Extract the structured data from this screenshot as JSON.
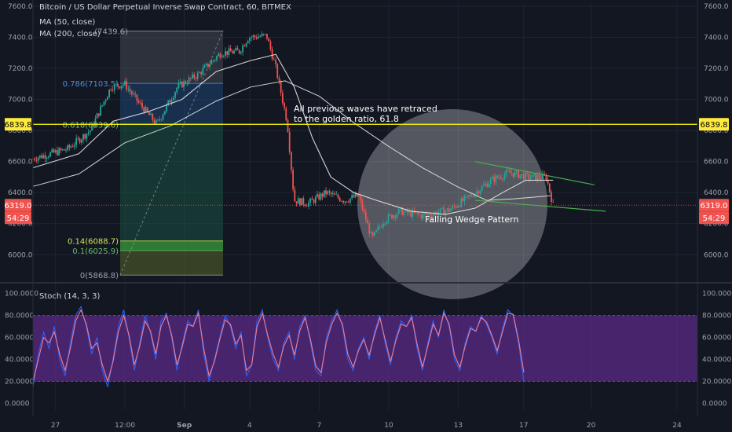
{
  "header": {
    "title": "Bitcoin / US Dollar Perpetual Inverse Swap Contract, 60, BITMEX",
    "ma50": "MA (50, close)",
    "ma200": "MA (200, close)",
    "stoch": "Stoch (14, 3, 3)"
  },
  "price_badges": {
    "golden_level": "6839.8",
    "last_price": "6319.0",
    "countdown": "54:29"
  },
  "annotations": {
    "retrace_note_line1": "All previous waves have retraced",
    "retrace_note_line2": "to the golden ratio, 61.8",
    "pattern_label": "Falling Wedge Pattern"
  },
  "colors": {
    "background": "#131722",
    "grid": "#1f2431",
    "up_candle": "#26a69a",
    "down_candle": "#ef5350",
    "golden_line": "#ffff00",
    "wedge_line": "#4caf50",
    "ma_line": "#e8e8e8",
    "stoch_band": "#5b2a86",
    "stoch_k": "#2962ff",
    "stoch_d": "#ef7c8e",
    "badge_yellow": "#ffeb3b",
    "badge_red": "#ef5350"
  },
  "chart_data": [
    {
      "type": "candlestick",
      "title": "Bitcoin / US Dollar Perpetual Inverse Swap Contract, 60, BITMEX",
      "x_tick_labels": [
        "27",
        "12:00",
        "Sep",
        "4",
        "7",
        "10",
        "13",
        "17",
        "20",
        "24"
      ],
      "y_tick_labels": [
        "6000.0",
        "6200.0",
        "6400.0",
        "6600.0",
        "6800.0",
        "7000.0",
        "7200.0",
        "7400.0",
        "7600.0"
      ],
      "ylim": [
        5880,
        7620
      ],
      "price_path": [
        {
          "t": 0.0,
          "p": 6620
        },
        {
          "t": 1.5,
          "p": 6680
        },
        {
          "t": 2.5,
          "p": 6800
        },
        {
          "t": 3.4,
          "p": 7080
        },
        {
          "t": 4.0,
          "p": 7100
        },
        {
          "t": 4.6,
          "p": 6980
        },
        {
          "t": 5.4,
          "p": 6840
        },
        {
          "t": 6.3,
          "p": 7080
        },
        {
          "t": 7.2,
          "p": 7160
        },
        {
          "t": 8.2,
          "p": 7300
        },
        {
          "t": 9.0,
          "p": 7310
        },
        {
          "t": 9.4,
          "p": 7400
        },
        {
          "t": 10.2,
          "p": 7410
        },
        {
          "t": 10.6,
          "p": 7200
        },
        {
          "t": 11.1,
          "p": 6850
        },
        {
          "t": 11.4,
          "p": 6350
        },
        {
          "t": 12.0,
          "p": 6330
        },
        {
          "t": 12.8,
          "p": 6400
        },
        {
          "t": 13.6,
          "p": 6350
        },
        {
          "t": 14.2,
          "p": 6380
        },
        {
          "t": 14.8,
          "p": 6100
        },
        {
          "t": 15.3,
          "p": 6220
        },
        {
          "t": 16.0,
          "p": 6280
        },
        {
          "t": 17.0,
          "p": 6250
        },
        {
          "t": 18.2,
          "p": 6290
        },
        {
          "t": 19.3,
          "p": 6400
        },
        {
          "t": 20.0,
          "p": 6480
        },
        {
          "t": 20.8,
          "p": 6530
        },
        {
          "t": 21.6,
          "p": 6500
        },
        {
          "t": 22.4,
          "p": 6500
        },
        {
          "t": 22.7,
          "p": 6319
        }
      ],
      "series": [
        {
          "name": "MA (50, close)",
          "points": [
            {
              "t": 0.0,
              "p": 6560
            },
            {
              "t": 2.0,
              "p": 6650
            },
            {
              "t": 3.5,
              "p": 6860
            },
            {
              "t": 5.0,
              "p": 6920
            },
            {
              "t": 6.5,
              "p": 7000
            },
            {
              "t": 8.0,
              "p": 7180
            },
            {
              "t": 9.5,
              "p": 7250
            },
            {
              "t": 10.6,
              "p": 7290
            },
            {
              "t": 11.4,
              "p": 7080
            },
            {
              "t": 12.2,
              "p": 6750
            },
            {
              "t": 13.0,
              "p": 6500
            },
            {
              "t": 14.0,
              "p": 6400
            },
            {
              "t": 15.0,
              "p": 6350
            },
            {
              "t": 16.5,
              "p": 6280
            },
            {
              "t": 18.0,
              "p": 6260
            },
            {
              "t": 19.3,
              "p": 6300
            },
            {
              "t": 20.5,
              "p": 6400
            },
            {
              "t": 21.5,
              "p": 6480
            },
            {
              "t": 22.7,
              "p": 6480
            }
          ]
        },
        {
          "name": "MA (200, close)",
          "points": [
            {
              "t": 0.0,
              "p": 6440
            },
            {
              "t": 2.0,
              "p": 6520
            },
            {
              "t": 4.0,
              "p": 6720
            },
            {
              "t": 6.0,
              "p": 6830
            },
            {
              "t": 8.0,
              "p": 6990
            },
            {
              "t": 9.5,
              "p": 7080
            },
            {
              "t": 11.0,
              "p": 7120
            },
            {
              "t": 12.5,
              "p": 7020
            },
            {
              "t": 14.0,
              "p": 6850
            },
            {
              "t": 15.5,
              "p": 6700
            },
            {
              "t": 17.0,
              "p": 6560
            },
            {
              "t": 18.5,
              "p": 6440
            },
            {
              "t": 19.8,
              "p": 6350
            },
            {
              "t": 21.0,
              "p": 6360
            },
            {
              "t": 22.6,
              "p": 6380
            }
          ]
        }
      ],
      "fib_levels": [
        {
          "label": "(7439.6)",
          "value": 7439.6
        },
        {
          "label": "0.786(7103.5)",
          "value": 7103.5
        },
        {
          "label": "0.618(6839.6)",
          "value": 6839.6
        },
        {
          "label": "0.14(6088.7)",
          "value": 6088.7
        },
        {
          "label": "0.1(6025.9)",
          "value": 6025.9
        },
        {
          "label": "0(5868.8)",
          "value": 5868.8
        }
      ],
      "horizontal_line": 6839.8,
      "last_price": 6319.0,
      "wedge": {
        "upper": [
          {
            "t": 19.3,
            "p": 6600
          },
          {
            "t": 24.5,
            "p": 6450
          }
        ],
        "lower": [
          {
            "t": 19.3,
            "p": 6350
          },
          {
            "t": 25.0,
            "p": 6280
          }
        ]
      }
    },
    {
      "type": "line",
      "title": "Stoch (14, 3, 3)",
      "y_tick_labels": [
        "0.0000",
        "20.0000",
        "40.0000",
        "60.0000",
        "80.0000",
        "100.0000"
      ],
      "ylim": [
        -6,
        104
      ],
      "band": [
        20,
        80
      ],
      "series": [
        {
          "name": "%K",
          "values": [
            15,
            45,
            65,
            50,
            70,
            40,
            25,
            55,
            80,
            88,
            70,
            45,
            60,
            30,
            15,
            40,
            70,
            85,
            60,
            30,
            55,
            80,
            65,
            40,
            75,
            82,
            60,
            30,
            55,
            75,
            70,
            85,
            45,
            20,
            40,
            60,
            80,
            70,
            50,
            65,
            25,
            35,
            75,
            85,
            60,
            40,
            30,
            55,
            65,
            40,
            70,
            80,
            55,
            30,
            25,
            60,
            75,
            85,
            70,
            40,
            30,
            50,
            60,
            40,
            65,
            80,
            55,
            35,
            60,
            75,
            70,
            80,
            50,
            30,
            55,
            75,
            60,
            85,
            70,
            40,
            30,
            55,
            70,
            65,
            80,
            72,
            60,
            45,
            68,
            85,
            80,
            55,
            20
          ]
        },
        {
          "name": "%D",
          "values": [
            20,
            40,
            60,
            55,
            65,
            45,
            30,
            50,
            75,
            85,
            72,
            50,
            55,
            35,
            20,
            38,
            65,
            80,
            62,
            35,
            52,
            75,
            66,
            45,
            70,
            80,
            62,
            35,
            52,
            72,
            70,
            82,
            50,
            25,
            38,
            58,
            76,
            72,
            54,
            62,
            30,
            35,
            70,
            82,
            62,
            45,
            33,
            52,
            62,
            44,
            66,
            78,
            58,
            34,
            28,
            56,
            72,
            82,
            72,
            45,
            33,
            48,
            58,
            44,
            62,
            78,
            58,
            38,
            57,
            72,
            70,
            78,
            54,
            33,
            52,
            72,
            62,
            82,
            72,
            44,
            33,
            52,
            68,
            66,
            78,
            74,
            62,
            48,
            65,
            82,
            81,
            58,
            28
          ]
        }
      ]
    }
  ]
}
